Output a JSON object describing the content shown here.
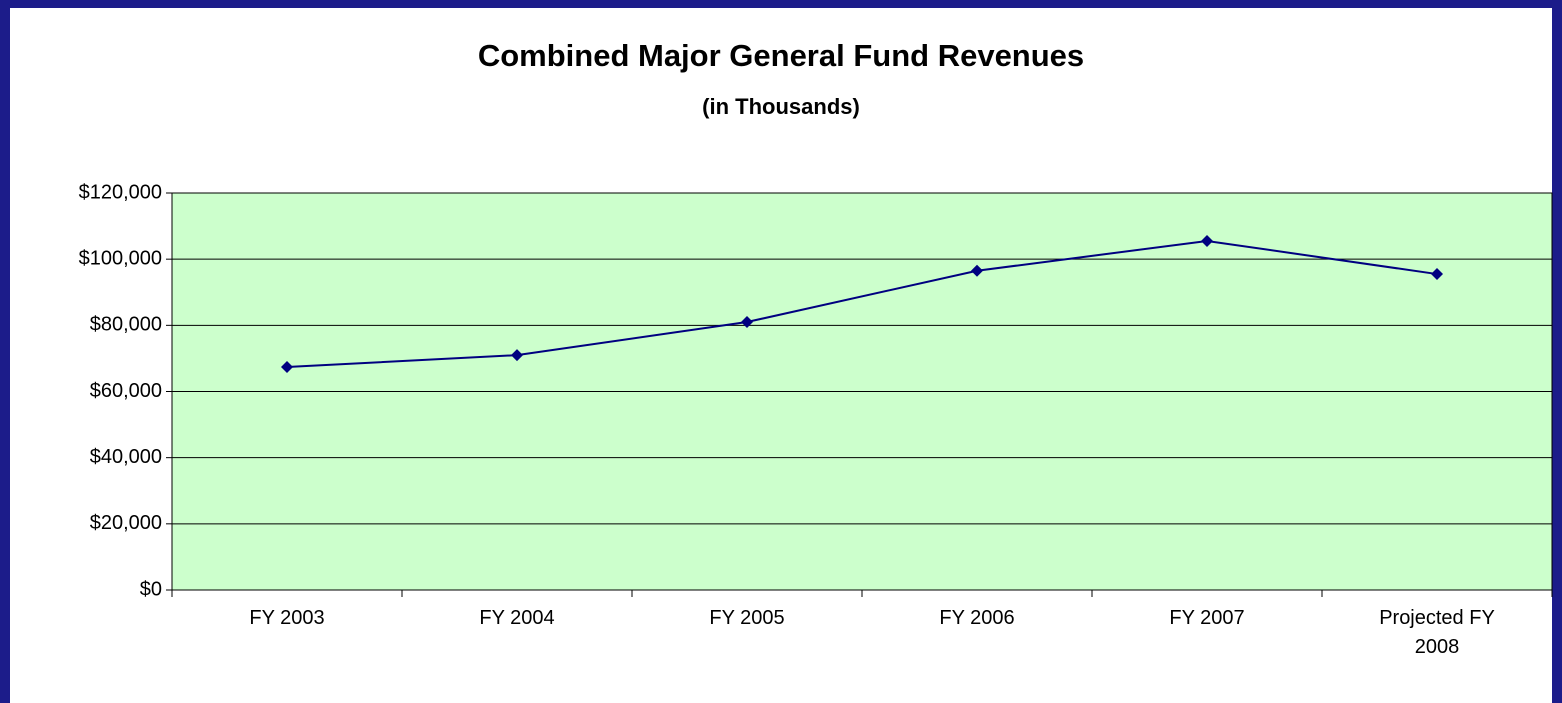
{
  "chart_data": {
    "type": "line",
    "title": "Combined Major General Fund Revenues",
    "subtitle": "(in Thousands)",
    "categories": [
      "FY 2003",
      "FY 2004",
      "FY 2005",
      "FY 2006",
      "FY 2007",
      "Projected FY 2008"
    ],
    "series": [
      {
        "name": "Combined Major General Fund Revenues",
        "color": "#000080",
        "values": [
          67400,
          71000,
          81000,
          96500,
          105500,
          95500
        ]
      }
    ],
    "ylim": [
      0,
      120000
    ],
    "yticks": [
      {
        "value": 0,
        "label": "$0"
      },
      {
        "value": 20000,
        "label": "$20,000"
      },
      {
        "value": 40000,
        "label": "$40,000"
      },
      {
        "value": 60000,
        "label": "$60,000"
      },
      {
        "value": 80000,
        "label": "$80,000"
      },
      {
        "value": 100000,
        "label": "$100,000"
      },
      {
        "value": 120000,
        "label": "$120,000"
      }
    ],
    "grid": true,
    "plot_background": "#ccffcc"
  }
}
